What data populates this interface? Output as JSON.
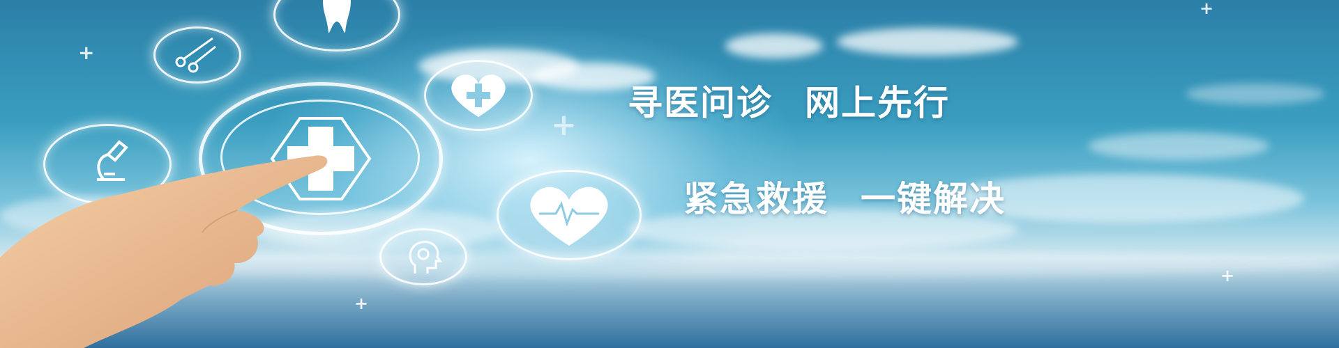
{
  "banner": {
    "line1": {
      "left": "寻医问诊",
      "right": "网上先行"
    },
    "line2": {
      "left": "紧急救援",
      "right": "一键解决"
    }
  },
  "icons": [
    "tooth-icon",
    "scissors-icon",
    "medical-cross-icon",
    "microscope-icon",
    "heart-plus-icon",
    "heartbeat-icon",
    "head-profile-icon",
    "pointing-hand"
  ],
  "colors": {
    "sky_top": "#2b7fa7",
    "sky_glow": "#dff5ff",
    "text": "#ffffff"
  }
}
